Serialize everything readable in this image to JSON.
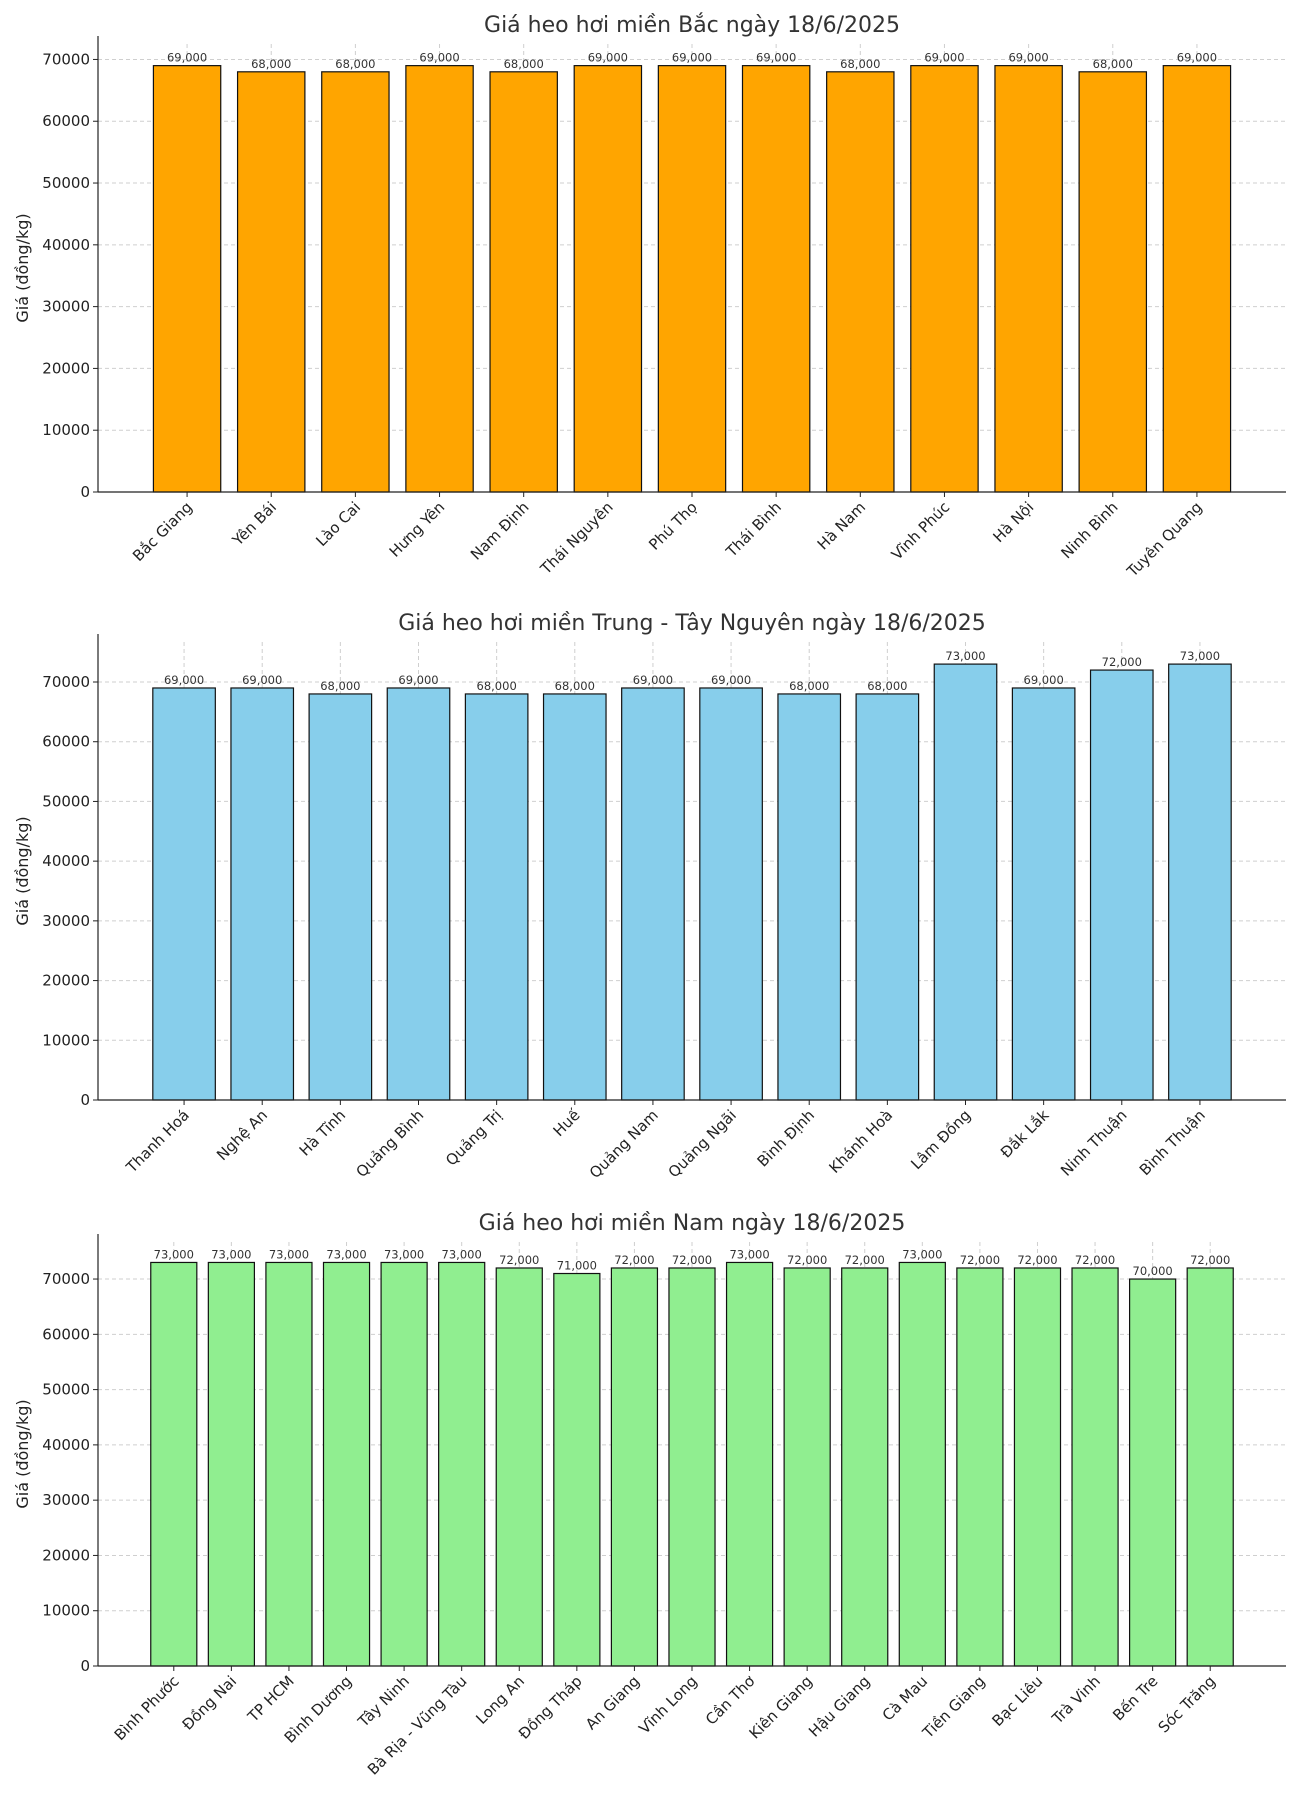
{
  "chart_data": [
    {
      "type": "bar",
      "title": "Giá heo hơi miền Bắc ngày 18/6/2025",
      "xlabel": "",
      "ylabel": "Giá (đồng/kg)",
      "ylim": [
        0,
        72500
      ],
      "yticks": [
        0,
        10000,
        20000,
        30000,
        40000,
        50000,
        60000,
        70000
      ],
      "color": "#FFA500",
      "grid": true,
      "categories": [
        "Bắc Giang",
        "Yên Bái",
        "Lào Cai",
        "Hưng Yên",
        "Nam Định",
        "Thái Nguyên",
        "Phú Thọ",
        "Thái Bình",
        "Hà Nam",
        "Vĩnh Phúc",
        "Hà Nội",
        "Ninh Bình",
        "Tuyên Quang"
      ],
      "values": [
        69000,
        68000,
        68000,
        69000,
        68000,
        69000,
        69000,
        69000,
        68000,
        69000,
        69000,
        68000,
        69000
      ],
      "value_labels": [
        "69,000",
        "68,000",
        "68,000",
        "69,000",
        "68,000",
        "69,000",
        "69,000",
        "69,000",
        "68,000",
        "69,000",
        "69,000",
        "68,000",
        "69,000"
      ]
    },
    {
      "type": "bar",
      "title": "Giá heo hơi miền Trung - Tây Nguyên ngày 18/6/2025",
      "xlabel": "",
      "ylabel": "Giá (đồng/kg)",
      "ylim": [
        0,
        76700
      ],
      "yticks": [
        0,
        10000,
        20000,
        30000,
        40000,
        50000,
        60000,
        70000
      ],
      "color": "#87CEEB",
      "grid": true,
      "categories": [
        "Thanh Hoá",
        "Nghệ An",
        "Hà Tĩnh",
        "Quảng Bình",
        "Quảng Trị",
        "Huế",
        "Quảng Nam",
        "Quảng Ngãi",
        "Bình Định",
        "Khánh Hoà",
        "Lâm Đồng",
        "Đắk Lắk",
        "Ninh Thuận",
        "Bình Thuận"
      ],
      "values": [
        69000,
        69000,
        68000,
        69000,
        68000,
        68000,
        69000,
        69000,
        68000,
        68000,
        73000,
        69000,
        72000,
        73000
      ],
      "value_labels": [
        "69,000",
        "69,000",
        "68,000",
        "69,000",
        "68,000",
        "68,000",
        "69,000",
        "69,000",
        "68,000",
        "68,000",
        "73,000",
        "69,000",
        "72,000",
        "73,000"
      ]
    },
    {
      "type": "bar",
      "title": "Giá heo hơi miền Nam ngày 18/6/2025",
      "xlabel": "",
      "ylabel": "Giá (đồng/kg)",
      "ylim": [
        0,
        76700
      ],
      "yticks": [
        0,
        10000,
        20000,
        30000,
        40000,
        50000,
        60000,
        70000
      ],
      "color": "#90EE90",
      "grid": true,
      "categories": [
        "Bình Phước",
        "Đồng Nai",
        "TP HCM",
        "Bình Dương",
        "Tây Ninh",
        "Bà Rịa - Vũng Tàu",
        "Long An",
        "Đồng Tháp",
        "An Giang",
        "Vĩnh Long",
        "Cần Thơ",
        "Kiên Giang",
        "Hậu Giang",
        "Cà Mau",
        "Tiền Giang",
        "Bạc Liêu",
        "Trà Vinh",
        "Bến Tre",
        "Sóc Trăng"
      ],
      "values": [
        73000,
        73000,
        73000,
        73000,
        73000,
        73000,
        72000,
        71000,
        72000,
        72000,
        73000,
        72000,
        72000,
        73000,
        72000,
        72000,
        72000,
        70000,
        72000
      ],
      "value_labels": [
        "73,000",
        "73,000",
        "73,000",
        "73,000",
        "73,000",
        "73,000",
        "72,000",
        "71,000",
        "72,000",
        "72,000",
        "73,000",
        "72,000",
        "72,000",
        "73,000",
        "72,000",
        "72,000",
        "72,000",
        "70,000",
        "72,000"
      ]
    }
  ]
}
